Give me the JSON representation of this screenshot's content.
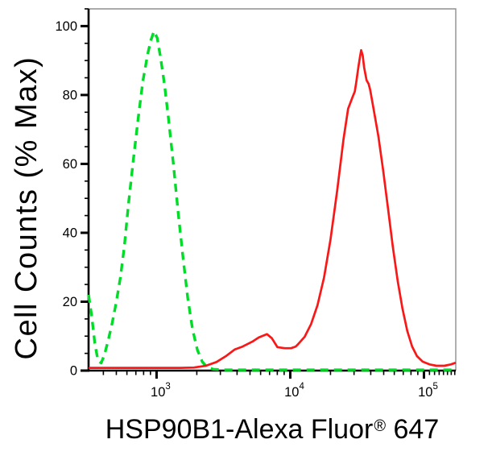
{
  "chart_data": {
    "type": "line",
    "subtype": "flow-cytometry-histogram-overlay",
    "title": "",
    "ylabel": "Cell Counts (% Max)",
    "xlabel_parts": {
      "pre": "HSP90B1-Alexa Fluor",
      "sup": "®",
      "post": " 647"
    },
    "x_scale": "log",
    "xlim": [
      310,
      173000
    ],
    "ylim": [
      0,
      105
    ],
    "grid": false,
    "legend": "none",
    "background_color": "#ffffff",
    "axis_color": "#000000",
    "frame_color": "#8f8f8f",
    "y_major_ticks": [
      {
        "value": 0,
        "label": "0"
      },
      {
        "value": 20,
        "label": "20"
      },
      {
        "value": 40,
        "label": "40"
      },
      {
        "value": 60,
        "label": "60"
      },
      {
        "value": 80,
        "label": "80"
      },
      {
        "value": 100,
        "label": "100"
      }
    ],
    "y_minor_step": 5,
    "x_major_ticks": [
      {
        "value": 1000,
        "base": "10",
        "exp": "3"
      },
      {
        "value": 10000,
        "base": "10",
        "exp": "4"
      },
      {
        "value": 100000,
        "base": "10",
        "exp": "5"
      }
    ],
    "x_minor_ticks": [
      400,
      500,
      600,
      700,
      800,
      900,
      2000,
      3000,
      4000,
      5000,
      6000,
      7000,
      8000,
      9000,
      20000,
      30000,
      40000,
      50000,
      60000,
      70000,
      80000,
      90000,
      110000,
      120000,
      130000,
      140000,
      150000,
      160000,
      170000
    ],
    "series": [
      {
        "name": "green-dashed-control",
        "color": "#00DC28",
        "style": "dashed",
        "dash": [
          10,
          7
        ],
        "width": 3.4,
        "peak_x": 960,
        "peak_y": 98.5,
        "points": [
          [
            310,
            22
          ],
          [
            327,
            16
          ],
          [
            345,
            8
          ],
          [
            364,
            3
          ],
          [
            385,
            2.2
          ],
          [
            407,
            4.5
          ],
          [
            436,
            9
          ],
          [
            467,
            14
          ],
          [
            500,
            20
          ],
          [
            536,
            27
          ],
          [
            574,
            36
          ],
          [
            615,
            48
          ],
          [
            669,
            61
          ],
          [
            727,
            73
          ],
          [
            790,
            84
          ],
          [
            859,
            92
          ],
          [
            908,
            96
          ],
          [
            958,
            98.5
          ],
          [
            1012,
            96.5
          ],
          [
            1070,
            91
          ],
          [
            1147,
            83
          ],
          [
            1229,
            73
          ],
          [
            1335,
            60
          ],
          [
            1450,
            46
          ],
          [
            1575,
            33
          ],
          [
            1711,
            21
          ],
          [
            1859,
            12
          ],
          [
            2019,
            6
          ],
          [
            2194,
            2.6
          ],
          [
            2383,
            1
          ],
          [
            2654,
            0.4
          ],
          [
            3220,
            0.2
          ],
          [
            5810,
            0.2
          ],
          [
            17900,
            0.2
          ],
          [
            60000,
            0.2
          ],
          [
            173000,
            0.2
          ]
        ]
      },
      {
        "name": "red-solid-sample",
        "color": "#F91717",
        "style": "solid",
        "width": 2.7,
        "peak_x": 33900,
        "peak_y": 93,
        "points": [
          [
            310,
            0.8
          ],
          [
            1500,
            0.8
          ],
          [
            1900,
            0.9
          ],
          [
            2340,
            1.4
          ],
          [
            2810,
            2.5
          ],
          [
            3330,
            4.3
          ],
          [
            3830,
            6.1
          ],
          [
            4410,
            7
          ],
          [
            5200,
            8.4
          ],
          [
            5810,
            9.6
          ],
          [
            6690,
            10.6
          ],
          [
            7280,
            9.4
          ],
          [
            8010,
            6.8
          ],
          [
            9080,
            6.5
          ],
          [
            10150,
            6.5
          ],
          [
            11000,
            7
          ],
          [
            11400,
            7.6
          ],
          [
            12800,
            9.8
          ],
          [
            14300,
            13.5
          ],
          [
            16000,
            19
          ],
          [
            17900,
            27
          ],
          [
            20000,
            38
          ],
          [
            22400,
            52
          ],
          [
            25000,
            67
          ],
          [
            27100,
            76
          ],
          [
            29300,
            79.5
          ],
          [
            30400,
            81
          ],
          [
            31100,
            83.5
          ],
          [
            32300,
            88
          ],
          [
            33200,
            91
          ],
          [
            33900,
            93
          ],
          [
            34800,
            91.5
          ],
          [
            35700,
            88
          ],
          [
            37200,
            84.3
          ],
          [
            38600,
            83.2
          ],
          [
            39600,
            81.5
          ],
          [
            42000,
            76
          ],
          [
            45600,
            68
          ],
          [
            49600,
            58
          ],
          [
            53900,
            47
          ],
          [
            58500,
            36
          ],
          [
            63600,
            26
          ],
          [
            69100,
            18
          ],
          [
            75100,
            11.5
          ],
          [
            81600,
            7
          ],
          [
            88700,
            4.2
          ],
          [
            97900,
            2.6
          ],
          [
            110000,
            1.8
          ],
          [
            124000,
            1.4
          ],
          [
            142000,
            1.4
          ],
          [
            159000,
            1.8
          ],
          [
            173000,
            2.3
          ]
        ]
      }
    ]
  }
}
